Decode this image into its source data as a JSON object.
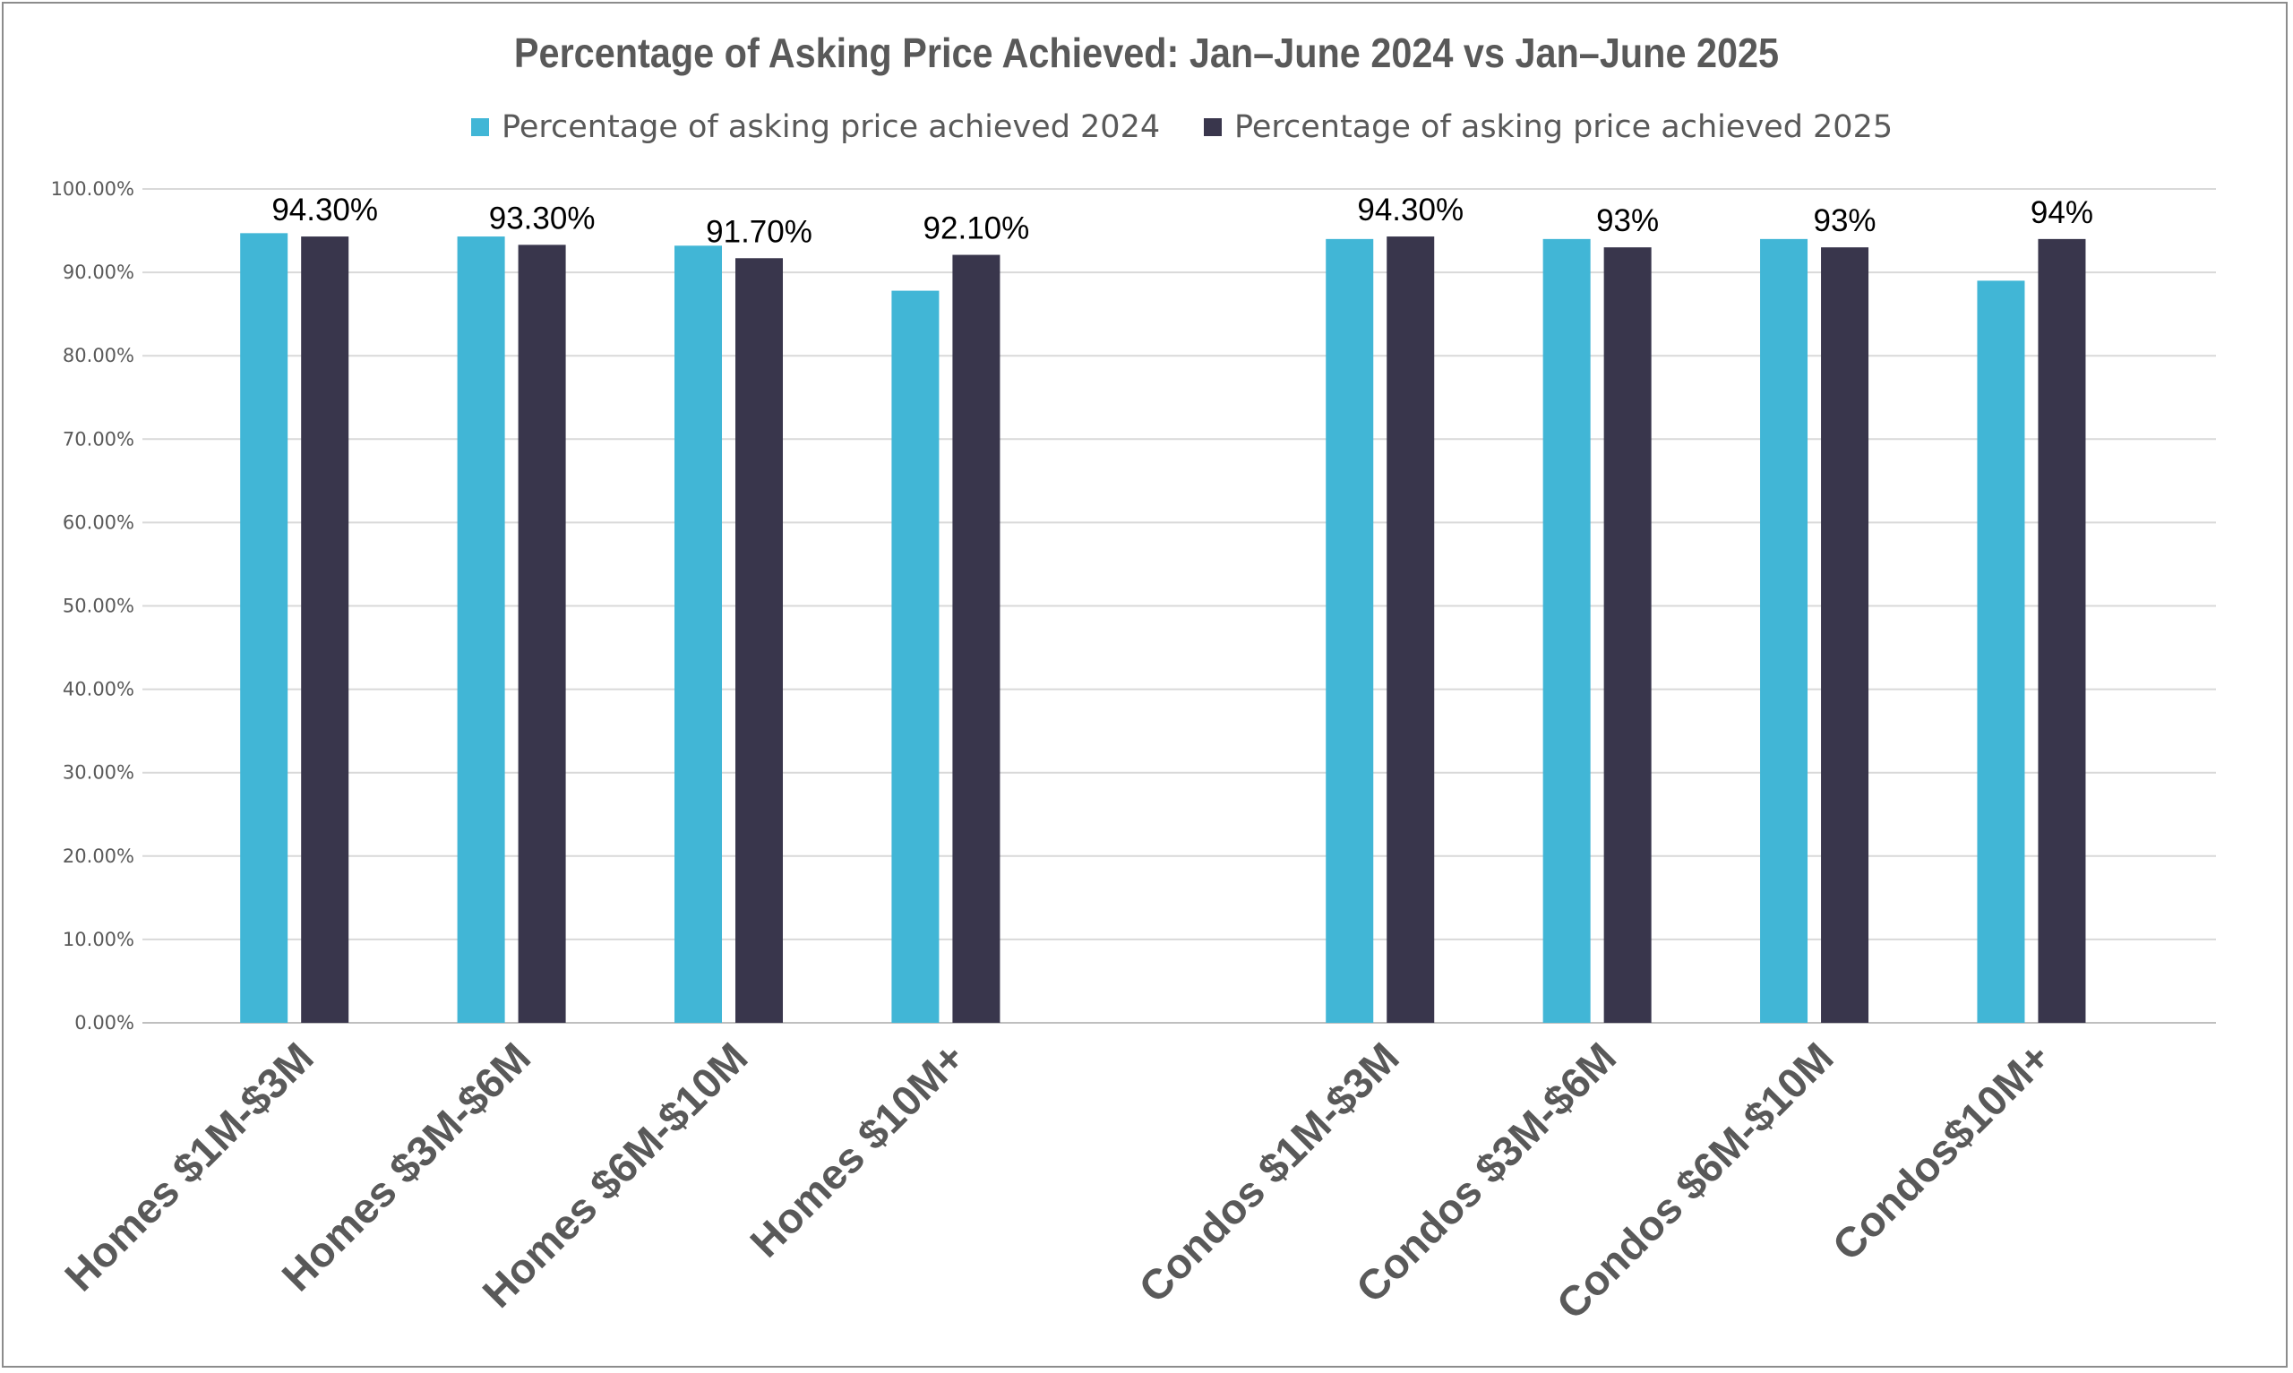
{
  "chart_data": {
    "type": "bar",
    "title": "Percentage of Asking Price Achieved: Jan–June 2024 vs Jan–June 2025",
    "categories": [
      "Homes $1M-$3M",
      "Homes $3M-$6M",
      "Homes $6M-$10M",
      "Homes $10M+",
      "",
      "Condos $1M-$3M",
      "Condos $3M-$6M",
      "Condos $6M-$10M",
      "Condos$10M+"
    ],
    "series": [
      {
        "name": "Percentage of asking price achieved 2024",
        "color": "#41b6d6",
        "values": [
          94.7,
          94.3,
          93.2,
          87.8,
          null,
          94.0,
          94.0,
          94.0,
          89.0
        ],
        "labels": [
          "",
          "",
          "",
          "",
          "",
          "",
          "",
          "",
          ""
        ]
      },
      {
        "name": "Percentage of asking price achieved 2025",
        "color": "#39364c",
        "values": [
          94.3,
          93.3,
          91.7,
          92.1,
          null,
          94.3,
          93.0,
          93.0,
          94.0
        ],
        "labels": [
          "94.30%",
          "93.30%",
          "91.70%",
          "92.10%",
          "",
          "94.30%",
          "93%",
          "93%",
          "94%"
        ]
      }
    ],
    "ylim": [
      0,
      100
    ],
    "yticks": [
      "0.00%",
      "10.00%",
      "20.00%",
      "30.00%",
      "40.00%",
      "50.00%",
      "60.00%",
      "70.00%",
      "80.00%",
      "90.00%",
      "100.00%"
    ],
    "xlabel": "",
    "ylabel": "",
    "grid": true,
    "legend_position": "top"
  }
}
